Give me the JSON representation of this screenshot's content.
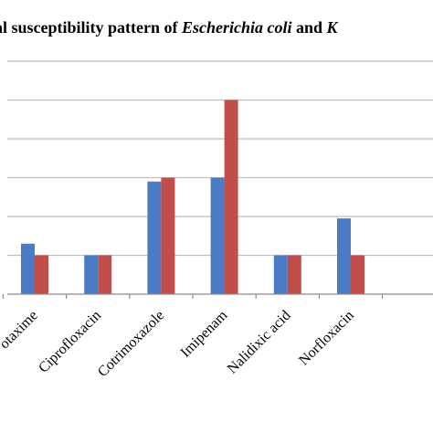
{
  "chart_data": {
    "type": "bar",
    "title_parts": [
      {
        "text": "al susceptibility pattern of ",
        "italic": false
      },
      {
        "text": "Escherichia coli",
        "italic": true
      },
      {
        "text": " and ",
        "italic": false
      },
      {
        "text": "K",
        "italic": true
      }
    ],
    "categories": [
      "otaxime",
      "Ciprofloxacin",
      "Cotrimoxazole",
      "Imipenam",
      "Nalidixic acid",
      "Norfloxacin",
      ""
    ],
    "series": [
      {
        "values": [
          1.3,
          1.0,
          2.9,
          3.0,
          1.0,
          1.95,
          null
        ],
        "color": "#4a7bc4"
      },
      {
        "values": [
          1.0,
          1.0,
          3.0,
          5.0,
          1.0,
          1.0,
          null
        ],
        "color": "#c24e4c"
      }
    ],
    "ylim": [
      0,
      6
    ],
    "grid": true,
    "colors": {
      "grid": "#bfbfbf",
      "axis": "#8c8c8c"
    }
  }
}
